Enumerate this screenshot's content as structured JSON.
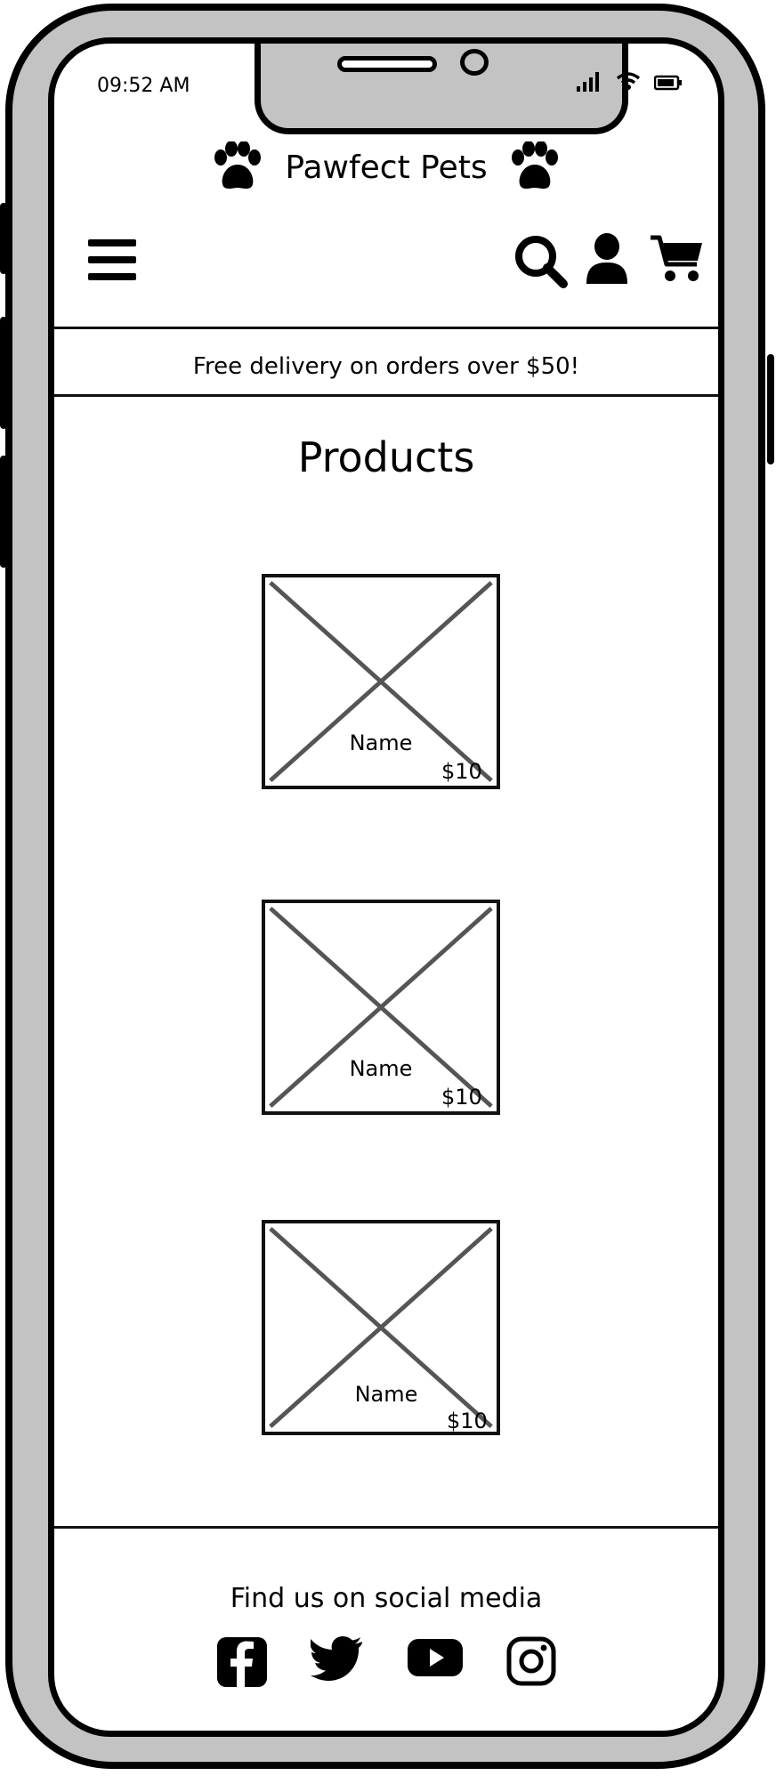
{
  "status_bar": {
    "time": "09:52 AM"
  },
  "header": {
    "brand": "Pawfect Pets",
    "icons": [
      "paw-icon",
      "menu-icon",
      "search-icon",
      "user-icon",
      "cart-icon"
    ]
  },
  "promo": {
    "text": "Free delivery on orders over $50!"
  },
  "main": {
    "title": "Products",
    "products": [
      {
        "name": "Name",
        "price": "$10"
      },
      {
        "name": "Name",
        "price": "$10"
      },
      {
        "name": "Name",
        "price": "$10"
      }
    ]
  },
  "footer": {
    "title": "Find us on social media",
    "social": [
      "facebook-icon",
      "twitter-icon",
      "youtube-icon",
      "instagram-icon"
    ]
  },
  "colors": {
    "frame": "#c3c3c3",
    "ink": "#111111",
    "screen": "#ffffff",
    "placeholder_line": "#555555"
  }
}
